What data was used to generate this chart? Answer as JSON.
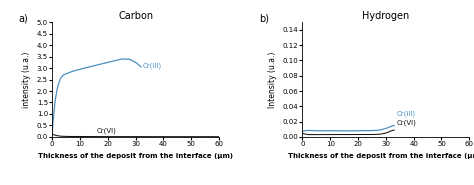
{
  "panel_a": {
    "title": "Carbon",
    "label": "a)",
    "xlabel": "Thickness of the deposit from the interface (μm)",
    "ylabel": "intensity (u.a.)",
    "xlim": [
      0,
      60
    ],
    "ylim": [
      0,
      5
    ],
    "yticks": [
      0,
      0.5,
      1,
      1.5,
      2,
      2.5,
      3,
      3.5,
      4,
      4.5,
      5
    ],
    "xticks": [
      0,
      10,
      20,
      30,
      40,
      50,
      60
    ],
    "cr3_color": "#4a90c0",
    "cr6_color": "#111111",
    "cr3_label": "Cr(III)",
    "cr6_label": "Cr(VI)"
  },
  "panel_b": {
    "title": "Hydrogen",
    "label": "b)",
    "xlabel": "Thickness of the deposit from the interface (μm)",
    "ylabel": "Intensity (u.a.)",
    "xlim": [
      0,
      60
    ],
    "ylim": [
      0,
      0.15
    ],
    "yticks": [
      0,
      0.02,
      0.04,
      0.06,
      0.08,
      0.1,
      0.12,
      0.14
    ],
    "xticks": [
      0,
      10,
      20,
      30,
      40,
      50,
      60
    ],
    "cr3_color": "#4a90c0",
    "cr6_color": "#111111",
    "cr3_label": "Cr(III)",
    "cr6_label": "Cr(VI)"
  }
}
